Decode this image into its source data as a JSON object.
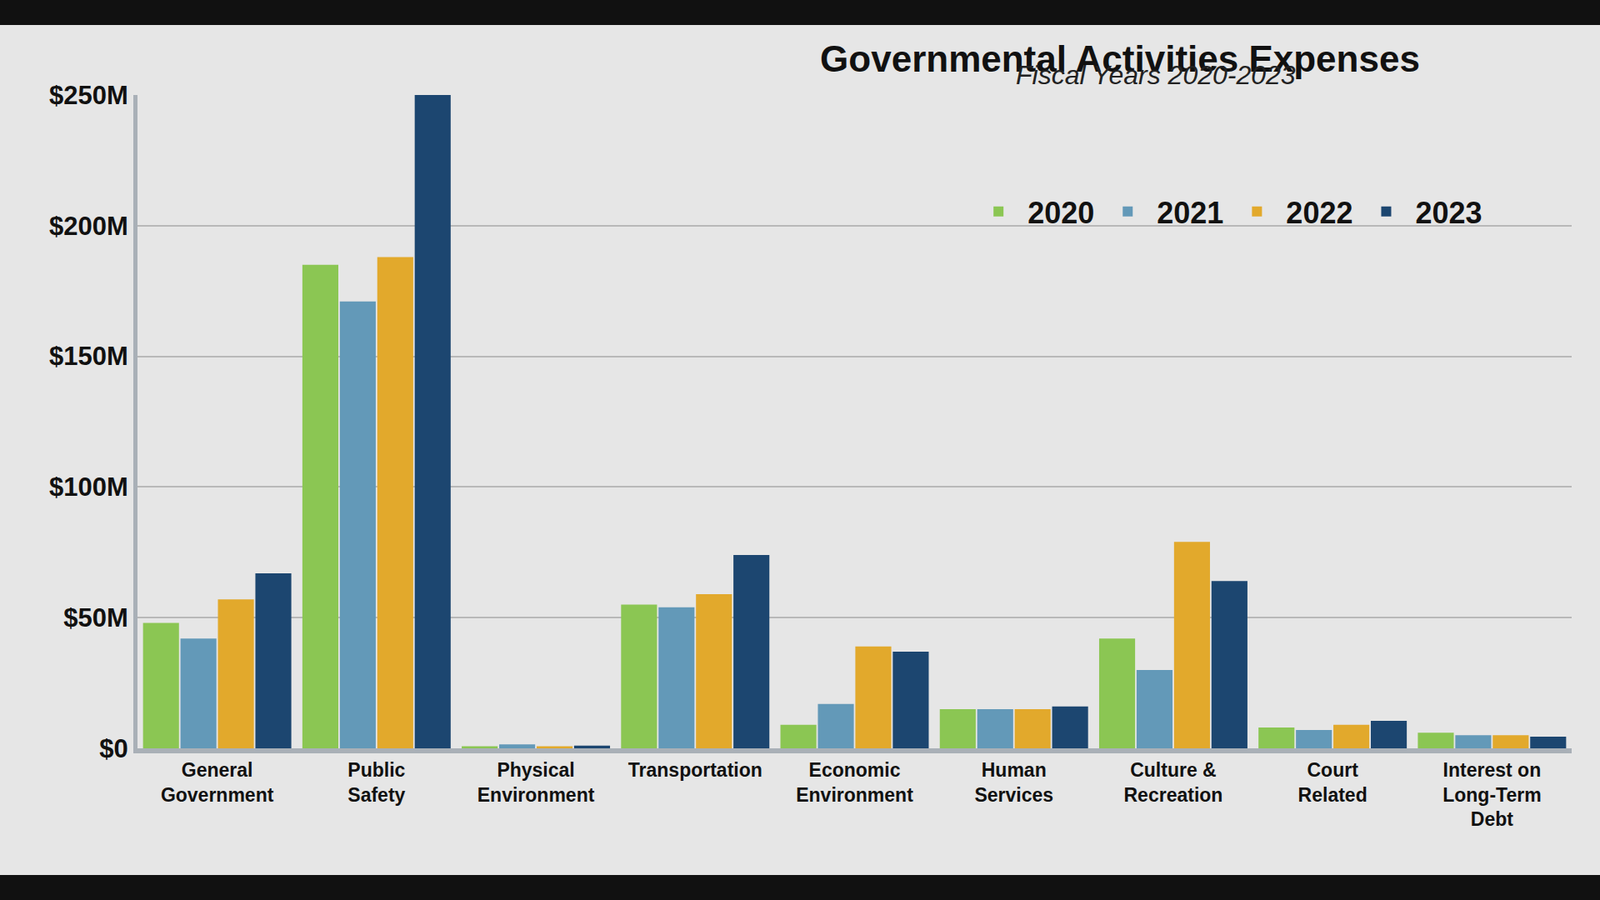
{
  "chart_data": {
    "type": "bar",
    "title": "Governmental Activities Expenses",
    "subtitle": "Fiscal Years 2020-2023",
    "categories": [
      "General Government",
      "Public Safety",
      "Physical Environment",
      "Transportation",
      "Economic Environment",
      "Human Services",
      "Culture & Recreation",
      "Court Related",
      "Interest on Long-Term Debt"
    ],
    "series": [
      {
        "name": "2020",
        "color": "#8bc653",
        "values": [
          48,
          185,
          0.8,
          55,
          9,
          15,
          42,
          8,
          6
        ]
      },
      {
        "name": "2021",
        "color": "#6399b8",
        "values": [
          42,
          171,
          1.5,
          54,
          17,
          15,
          30,
          7,
          5
        ]
      },
      {
        "name": "2022",
        "color": "#e2a92c",
        "values": [
          57,
          188,
          0.8,
          59,
          39,
          15,
          79,
          9,
          5
        ]
      },
      {
        "name": "2023",
        "color": "#1c4670",
        "values": [
          67,
          250,
          1,
          74,
          37,
          16,
          64,
          10.5,
          4.5
        ]
      }
    ],
    "ylim": [
      0,
      250
    ],
    "yticks": [
      {
        "value": 0,
        "label": "$0"
      },
      {
        "value": 50,
        "label": "$50M"
      },
      {
        "value": 100,
        "label": "$100M"
      },
      {
        "value": 150,
        "label": "$150M"
      },
      {
        "value": 200,
        "label": "$200M"
      },
      {
        "value": 250,
        "label": "$250M"
      }
    ],
    "grid": true,
    "legend": "top right"
  }
}
